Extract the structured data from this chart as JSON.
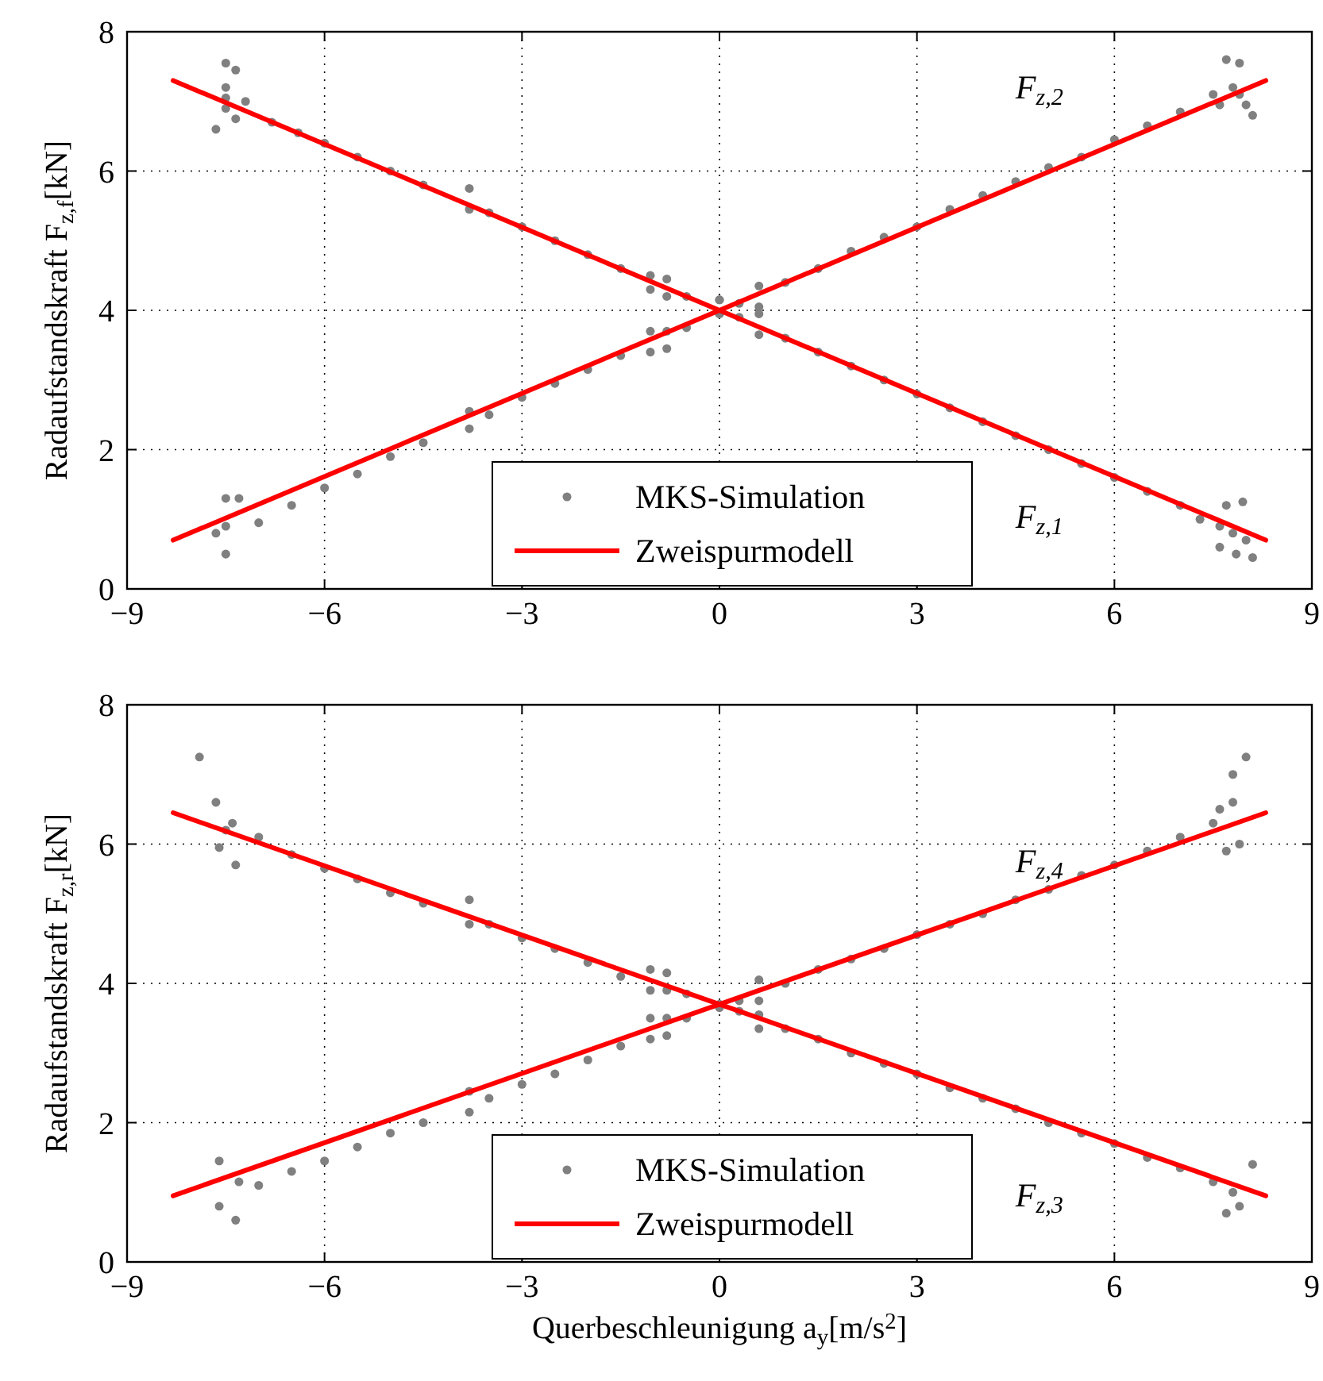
{
  "chart_data": [
    {
      "type": "scatter",
      "ylabel": "Radaufstandskraft F$_{z,f}$[kN]",
      "xlim": [
        -9,
        9
      ],
      "ylim": [
        0,
        8
      ],
      "xticks": [
        -9,
        -6,
        -3,
        0,
        3,
        6,
        9
      ],
      "yticks": [
        0,
        2,
        4,
        6,
        8
      ],
      "grid": true,
      "legend": "bottom",
      "annotations": [
        "F$_{z,2}$",
        "F$_{z,1}$"
      ],
      "series": [
        {
          "type": "scatter",
          "name": "MKS-Simulation",
          "color": "#808080",
          "marker": "circle",
          "x": [
            -7.5,
            -7.35,
            -7.5,
            -7.5,
            -7.65,
            -7.35,
            -7.5,
            -7.2,
            -6.8,
            -6.4,
            -6,
            -5.5,
            -5,
            -4.5,
            -3.8,
            -3.8,
            -3.5,
            -3,
            -2.5,
            -2,
            -1.5,
            -1.05,
            -1.05,
            -0.8,
            -0.8,
            -0.5,
            0,
            0,
            0.3,
            0.6,
            0.6,
            1,
            1.5,
            2,
            2.5,
            3,
            3.5,
            4,
            4.5,
            5,
            5.5,
            6,
            6.5,
            7,
            7.3,
            7.6,
            7.8,
            7.7,
            7.95,
            7.85,
            8.1,
            7.6,
            8.0,
            -7.5,
            -7.65,
            -7.5,
            -7.3,
            -7.5,
            -7.0,
            -6.5,
            -6,
            -5.5,
            -5,
            -4.5,
            -3.8,
            -3.8,
            -3.5,
            -3,
            -2.5,
            -2,
            -1.5,
            -1.05,
            -1.05,
            -0.8,
            -0.8,
            -0.5,
            0,
            0,
            0.3,
            0.6,
            0.6,
            1,
            1.5,
            2,
            2.5,
            3,
            3.5,
            4,
            4.5,
            5,
            5.5,
            6,
            6.5,
            7,
            7.5,
            7.7,
            7.9,
            7.8,
            8.0,
            7.6,
            8.1,
            7.9
          ],
          "values": [
            7.55,
            7.45,
            7.2,
            6.9,
            6.6,
            6.75,
            7.05,
            7.0,
            6.7,
            6.55,
            6.4,
            6.2,
            6.0,
            5.8,
            5.75,
            5.45,
            5.4,
            5.2,
            5.0,
            4.8,
            4.6,
            4.5,
            4.3,
            4.45,
            4.2,
            4.2,
            4.15,
            3.95,
            3.9,
            3.95,
            3.65,
            3.6,
            3.4,
            3.2,
            3.0,
            2.8,
            2.6,
            2.4,
            2.2,
            2.0,
            1.8,
            1.6,
            1.4,
            1.2,
            1.0,
            0.9,
            0.8,
            1.2,
            1.25,
            0.5,
            0.45,
            0.6,
            0.7,
            0.5,
            0.8,
            1.3,
            1.3,
            0.9,
            0.95,
            1.2,
            1.45,
            1.65,
            1.9,
            2.1,
            2.55,
            2.3,
            2.5,
            2.75,
            2.95,
            3.15,
            3.35,
            3.7,
            3.4,
            3.7,
            3.45,
            3.75,
            3.95,
            4.15,
            4.1,
            4.35,
            4.05,
            4.4,
            4.6,
            4.85,
            5.05,
            5.2,
            5.45,
            5.65,
            5.85,
            6.05,
            6.2,
            6.45,
            6.65,
            6.85,
            7.1,
            7.6,
            7.55,
            7.2,
            6.95,
            6.95,
            6.8,
            7.1
          ]
        },
        {
          "type": "line",
          "name": "Zweispurmodell",
          "color": "#ff0000",
          "line_style": "solid",
          "x": [
            -8.3,
            0,
            8.3
          ],
          "values": [
            0.7,
            4.0,
            7.3
          ]
        },
        {
          "type": "line",
          "color": "#ff0000",
          "line_style": "solid",
          "x": [
            -8.3,
            0,
            8.3
          ],
          "values": [
            7.3,
            4.0,
            0.7
          ]
        }
      ]
    },
    {
      "type": "scatter",
      "xlabel": "Querbeschleunigung a$_{y}$[m/s$^{2}$]",
      "ylabel": "Radaufstandskraft F$_{z,r}$[kN]",
      "xlim": [
        -9,
        9
      ],
      "ylim": [
        0,
        8
      ],
      "xticks": [
        -9,
        -6,
        -3,
        0,
        3,
        6,
        9
      ],
      "yticks": [
        0,
        2,
        4,
        6,
        8
      ],
      "grid": true,
      "legend": "bottom",
      "annotations": [
        "F$_{z,4}$",
        "F$_{z,3}$"
      ],
      "series": [
        {
          "type": "scatter",
          "name": "MKS-Simulation",
          "color": "#808080",
          "marker": "circle",
          "x": [
            -7.9,
            -7.65,
            -7.5,
            -7.6,
            -7.35,
            -7.4,
            -7,
            -6.5,
            -6,
            -5.5,
            -5,
            -4.5,
            -3.8,
            -3.8,
            -3.5,
            -3,
            -2.5,
            -2,
            -1.5,
            -1.05,
            -1.05,
            -0.8,
            -0.8,
            -0.5,
            0,
            0.3,
            0.6,
            0.6,
            1,
            1.5,
            2,
            2.5,
            3,
            3.5,
            4,
            4.5,
            5,
            5.5,
            6,
            6.5,
            7,
            7.5,
            7.7,
            8.1,
            7.8,
            7.9,
            -7.6,
            -7.3,
            -7.6,
            -7.35,
            -7,
            -6.5,
            -6,
            -5.5,
            -5,
            -4.5,
            -3.8,
            -3.8,
            -3.5,
            -3,
            -2.5,
            -2,
            -1.5,
            -1.05,
            -1.05,
            -0.8,
            -0.8,
            -0.5,
            0,
            0.3,
            0.6,
            0.6,
            1,
            1.5,
            2,
            2.5,
            3,
            3.5,
            4,
            4.5,
            5,
            5.5,
            6,
            6.5,
            7,
            7.5,
            7.8,
            8.0,
            7.6,
            7.7,
            7.9,
            7.8
          ],
          "values": [
            7.25,
            6.6,
            6.2,
            5.95,
            5.7,
            6.3,
            6.1,
            5.85,
            5.65,
            5.5,
            5.3,
            5.15,
            5.2,
            4.85,
            4.85,
            4.65,
            4.5,
            4.3,
            4.1,
            4.2,
            3.9,
            4.15,
            3.9,
            3.85,
            3.7,
            3.6,
            3.75,
            3.35,
            3.35,
            3.2,
            3.0,
            2.85,
            2.7,
            2.5,
            2.35,
            2.2,
            2.0,
            1.85,
            1.7,
            1.5,
            1.35,
            1.15,
            0.7,
            1.4,
            1.0,
            0.8,
            1.45,
            1.15,
            0.8,
            0.6,
            1.1,
            1.3,
            1.45,
            1.65,
            1.85,
            2.0,
            2.45,
            2.15,
            2.35,
            2.55,
            2.7,
            2.9,
            3.1,
            3.5,
            3.2,
            3.5,
            3.25,
            3.5,
            3.65,
            3.75,
            4.05,
            3.55,
            4.0,
            4.2,
            4.35,
            4.5,
            4.7,
            4.85,
            5.0,
            5.2,
            5.35,
            5.55,
            5.7,
            5.9,
            6.1,
            6.3,
            7.0,
            7.25,
            6.5,
            5.9,
            6.0,
            6.6
          ]
        },
        {
          "type": "line",
          "name": "Zweispurmodell",
          "color": "#ff0000",
          "line_style": "solid",
          "x": [
            -8.3,
            0,
            8.3
          ],
          "values": [
            0.95,
            3.7,
            6.45
          ]
        },
        {
          "type": "line",
          "color": "#ff0000",
          "line_style": "solid",
          "x": [
            -8.3,
            0,
            8.3
          ],
          "values": [
            6.45,
            3.7,
            0.95
          ]
        }
      ]
    }
  ]
}
